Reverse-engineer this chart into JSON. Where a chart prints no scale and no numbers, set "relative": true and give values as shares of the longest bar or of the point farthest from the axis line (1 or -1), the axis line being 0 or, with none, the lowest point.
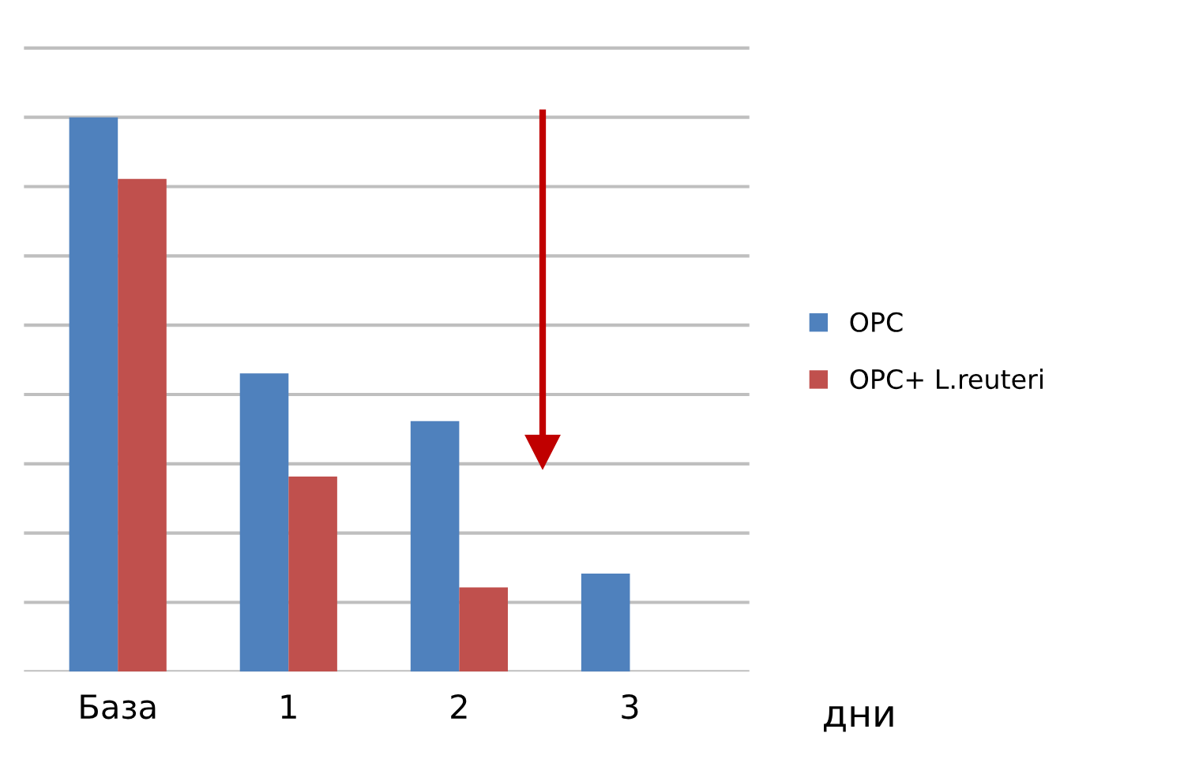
{
  "chart_data": {
    "type": "bar",
    "categories": [
      "База",
      "1",
      "2",
      "3"
    ],
    "xlabel": "дни",
    "relative": true,
    "grid": "y",
    "legend": "right",
    "series": [
      {
        "name": "ОРС",
        "color": "#4f81bd",
        "values": [
          1,
          0.538,
          0.452,
          0.177
        ]
      },
      {
        "name": "ОРС+ L.reuteri",
        "color": "#c0504d",
        "values": [
          0.889,
          0.352,
          0.152,
          null
        ]
      }
    ]
  }
}
